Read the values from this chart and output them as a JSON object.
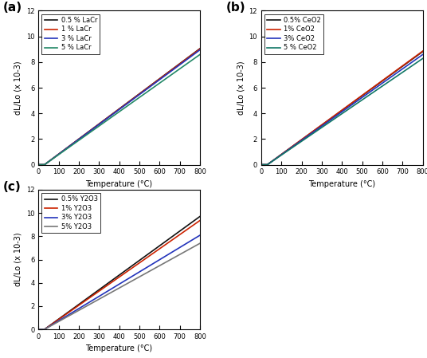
{
  "panels": [
    {
      "label": "(a)",
      "legend_labels": [
        "0.5 % LaCr",
        "1 % LaCr",
        "3 % LaCr",
        "5 % LaCr"
      ],
      "colors": [
        "#111111",
        "#cc2200",
        "#2233bb",
        "#228866"
      ],
      "slopes": [
        0.01175,
        0.01172,
        0.01162,
        0.01115
      ],
      "start_temp": 30,
      "ylabel": "dL/Lo (x 10-3)",
      "xlabel": "Temperature (°C)"
    },
    {
      "label": "(b)",
      "legend_labels": [
        "0.5% CeO2",
        "1% CeO2",
        "3% CeO2",
        "5 % CeO2"
      ],
      "colors": [
        "#111111",
        "#cc2200",
        "#2233bb",
        "#117766"
      ],
      "slopes": [
        0.01145,
        0.0115,
        0.01115,
        0.01075
      ],
      "start_temp": 30,
      "ylabel": "dL/Lo (x 10-3)",
      "xlabel": "Temperature (°C)"
    },
    {
      "label": "(c)",
      "legend_labels": [
        "0.5% Y2O3",
        "1% Y2O3",
        "3% Y2O3",
        "5% Y2O3"
      ],
      "colors": [
        "#111111",
        "#cc2200",
        "#2233bb",
        "#777777"
      ],
      "slopes": [
        0.0126,
        0.01215,
        0.0105,
        0.0096
      ],
      "start_temp": 30,
      "ylabel": "dL/Lo (x 10-3)",
      "xlabel": "Temperature (°C)"
    }
  ],
  "xlim": [
    0,
    800
  ],
  "ylim": [
    0,
    12
  ],
  "yticks": [
    0,
    2,
    4,
    6,
    8,
    10,
    12
  ],
  "xticks": [
    0,
    100,
    200,
    300,
    400,
    500,
    600,
    700,
    800
  ],
  "linewidth": 1.2,
  "label_fontsize": 7,
  "tick_fontsize": 6,
  "legend_fontsize": 6,
  "panel_label_fontsize": 11
}
